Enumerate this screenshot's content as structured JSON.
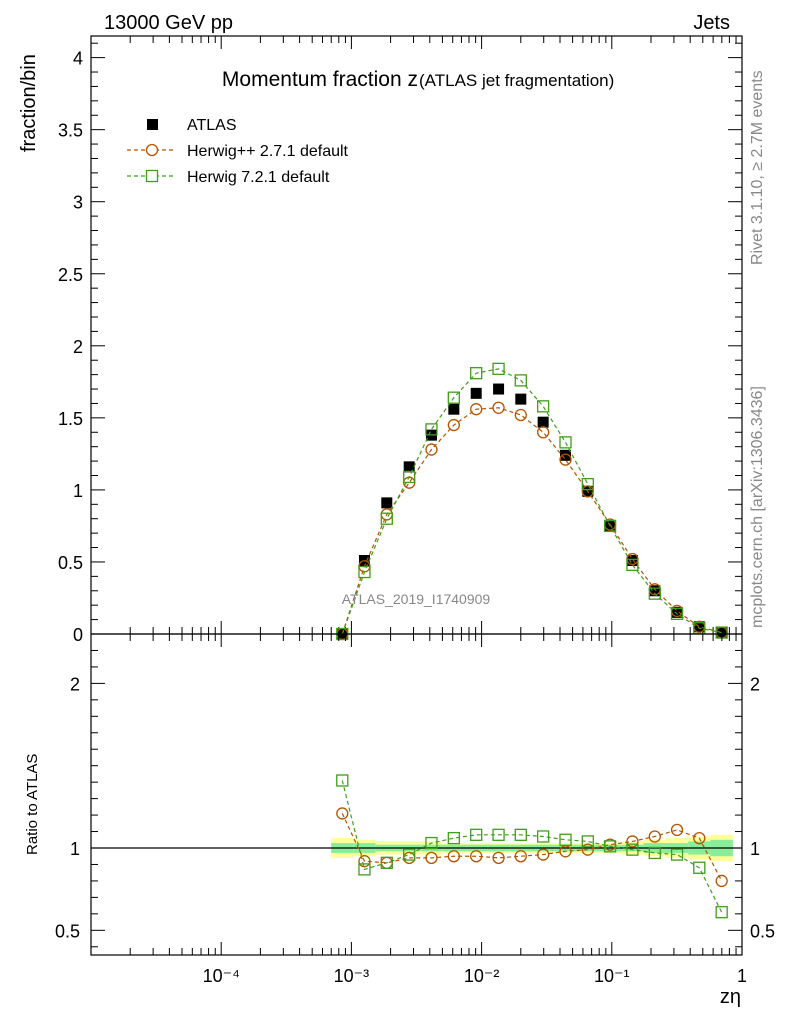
{
  "header": {
    "left": "13000 GeV pp",
    "right": "Jets"
  },
  "side_labels": {
    "rivet": "Rivet 3.1.10, ≥ 2.7M events",
    "mcplots": "mcplots.cern.ch [arXiv:1306.3436]"
  },
  "watermark": "ATLAS_2019_I1740909",
  "chart_data": [
    {
      "type": "scatter",
      "title_main": "Momentum fraction z",
      "title_sub": "(ATLAS jet fragmentation)",
      "ylabel": "fraction/bin",
      "x_scale": "log",
      "xlim": [
        1e-05,
        1
      ],
      "ylim": [
        0,
        4.15
      ],
      "y_ticks": [
        "0",
        "0.5",
        "1",
        "1.5",
        "2",
        "2.5",
        "3",
        "3.5",
        "4"
      ],
      "legend": [
        "ATLAS",
        "Herwig++ 2.7.1 default",
        "Herwig 7.2.1 default"
      ],
      "legend_position": "top-left",
      "x": [
        0.000851,
        0.00126,
        0.00187,
        0.00278,
        0.00412,
        0.00612,
        0.00909,
        0.0135,
        0.02,
        0.0297,
        0.0441,
        0.0654,
        0.097,
        0.144,
        0.214,
        0.317,
        0.47,
        0.698
      ],
      "series": [
        {
          "name": "ATLAS",
          "color": "#000000",
          "marker": "filled-square",
          "values": [
            0.0,
            0.51,
            0.91,
            1.16,
            1.38,
            1.56,
            1.67,
            1.7,
            1.63,
            1.47,
            1.24,
            0.99,
            0.75,
            0.51,
            0.3,
            0.15,
            0.05,
            0.01
          ]
        },
        {
          "name": "Herwig++ 2.7.1 default",
          "color": "#b35400",
          "marker": "open-circle",
          "values": [
            0.0,
            0.47,
            0.83,
            1.05,
            1.28,
            1.45,
            1.56,
            1.57,
            1.52,
            1.4,
            1.21,
            0.99,
            0.76,
            0.52,
            0.31,
            0.16,
            0.05,
            0.01
          ]
        },
        {
          "name": "Herwig 7.2.1 default",
          "color": "#3f9e1a",
          "marker": "open-square",
          "values": [
            0.0,
            0.43,
            0.8,
            1.09,
            1.42,
            1.64,
            1.81,
            1.84,
            1.76,
            1.58,
            1.33,
            1.04,
            0.75,
            0.48,
            0.28,
            0.14,
            0.04,
            0.01
          ]
        }
      ]
    },
    {
      "type": "scatter",
      "ylabel": "Ratio to ATLAS",
      "x_scale": "log",
      "xlim": [
        1e-05,
        1
      ],
      "ylim": [
        0.35,
        2.3
      ],
      "y_ticks": [
        "0.5",
        "1",
        "2"
      ],
      "x_ticks": [
        "10⁻⁴",
        "10⁻³",
        "10⁻²",
        "10⁻¹",
        "1"
      ],
      "xlabel": "zη",
      "reference": 1,
      "band_inner_color": "#88ee99",
      "band_outer_color": "#ffff99",
      "band_inner_halfwidth": [
        0.03,
        0.03,
        0.02,
        0.02,
        0.02,
        0.02,
        0.02,
        0.02,
        0.02,
        0.02,
        0.02,
        0.02,
        0.02,
        0.02,
        0.03,
        0.03,
        0.04,
        0.05
      ],
      "band_outer_halfwidth": [
        0.06,
        0.05,
        0.04,
        0.04,
        0.04,
        0.03,
        0.03,
        0.03,
        0.03,
        0.03,
        0.03,
        0.03,
        0.03,
        0.04,
        0.05,
        0.06,
        0.07,
        0.08
      ],
      "x": [
        0.000851,
        0.00126,
        0.00187,
        0.00278,
        0.00412,
        0.00612,
        0.00909,
        0.0135,
        0.02,
        0.0297,
        0.0441,
        0.0654,
        0.097,
        0.144,
        0.214,
        0.317,
        0.47,
        0.698
      ],
      "series": [
        {
          "name": "Herwig++ 2.7.1 default",
          "color": "#b35400",
          "values": [
            1.21,
            0.92,
            0.91,
            0.94,
            0.94,
            0.95,
            0.95,
            0.94,
            0.95,
            0.96,
            0.98,
            0.99,
            1.02,
            1.04,
            1.07,
            1.11,
            1.06,
            0.8
          ]
        },
        {
          "name": "Herwig 7.2.1 default",
          "color": "#3f9e1a",
          "values": [
            1.41,
            0.87,
            0.91,
            0.96,
            1.03,
            1.06,
            1.08,
            1.08,
            1.08,
            1.07,
            1.05,
            1.04,
            1.01,
            0.99,
            0.97,
            0.96,
            0.88,
            0.61
          ]
        }
      ]
    }
  ]
}
